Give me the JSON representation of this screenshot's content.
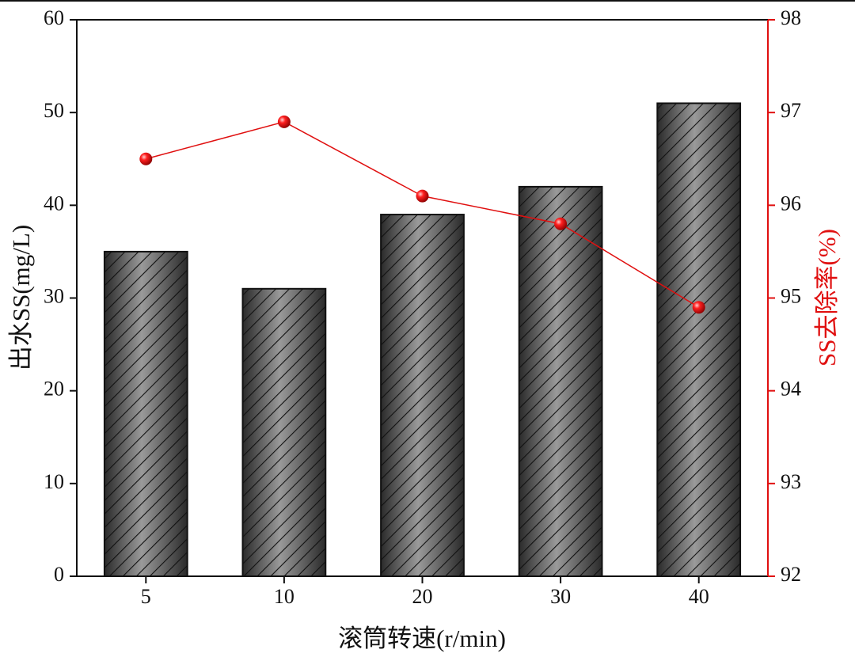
{
  "chart_data": {
    "type": "bar",
    "x_label": "滚筒转速(r/min)",
    "y_label": "出水SS(mg/L)",
    "y2_label": "SS去除率(%)",
    "categories": [
      "5",
      "10",
      "20",
      "30",
      "40"
    ],
    "series": [
      {
        "type": "bar",
        "color": "#3a3a3a",
        "values": [
          35,
          31,
          39,
          42,
          51
        ]
      },
      {
        "type": "line",
        "axis": "y2",
        "color": "#e01010",
        "values": [
          96.5,
          96.9,
          96.1,
          95.8,
          94.9
        ]
      }
    ],
    "ylim": [
      0,
      60
    ],
    "yticks": [
      0,
      10,
      20,
      30,
      40,
      50,
      60
    ],
    "y2lim": [
      92,
      98
    ],
    "y2ticks": [
      92,
      93,
      94,
      95,
      96,
      97,
      98
    ],
    "y2_color": "#e01010"
  }
}
